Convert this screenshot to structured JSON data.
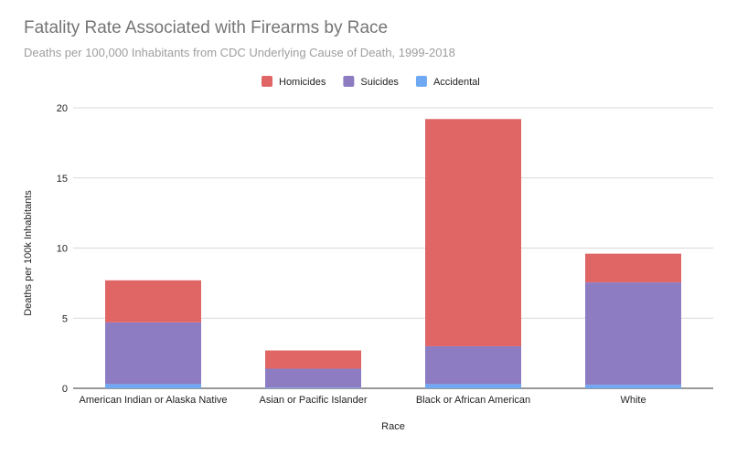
{
  "chart_data": {
    "type": "bar",
    "stacked": true,
    "title": "Fatality Rate Associated with Firearms by Race",
    "subtitle": "Deaths per 100,000 Inhabitants from CDC Underlying Cause of Death, 1999-2018",
    "xlabel": "Race",
    "ylabel": "Deaths per 100k Inhabitants",
    "ylim": [
      0,
      20
    ],
    "yticks": [
      0,
      5,
      10,
      15,
      20
    ],
    "grid": true,
    "legend_position": "top-center",
    "categories": [
      "American Indian or Alaska Native",
      "Asian or Pacific Islander",
      "Black or African American",
      "White"
    ],
    "series": [
      {
        "name": "Accidental",
        "color": "#6fa8f3",
        "values": [
          0.3,
          0.05,
          0.3,
          0.25
        ]
      },
      {
        "name": "Suicides",
        "color": "#8e7cc3",
        "values": [
          4.4,
          1.35,
          2.7,
          7.3
        ]
      },
      {
        "name": "Homicides",
        "color": "#e06666",
        "values": [
          3.0,
          1.3,
          16.2,
          2.05
        ]
      }
    ],
    "legend_order": [
      "Homicides",
      "Suicides",
      "Accidental"
    ]
  }
}
